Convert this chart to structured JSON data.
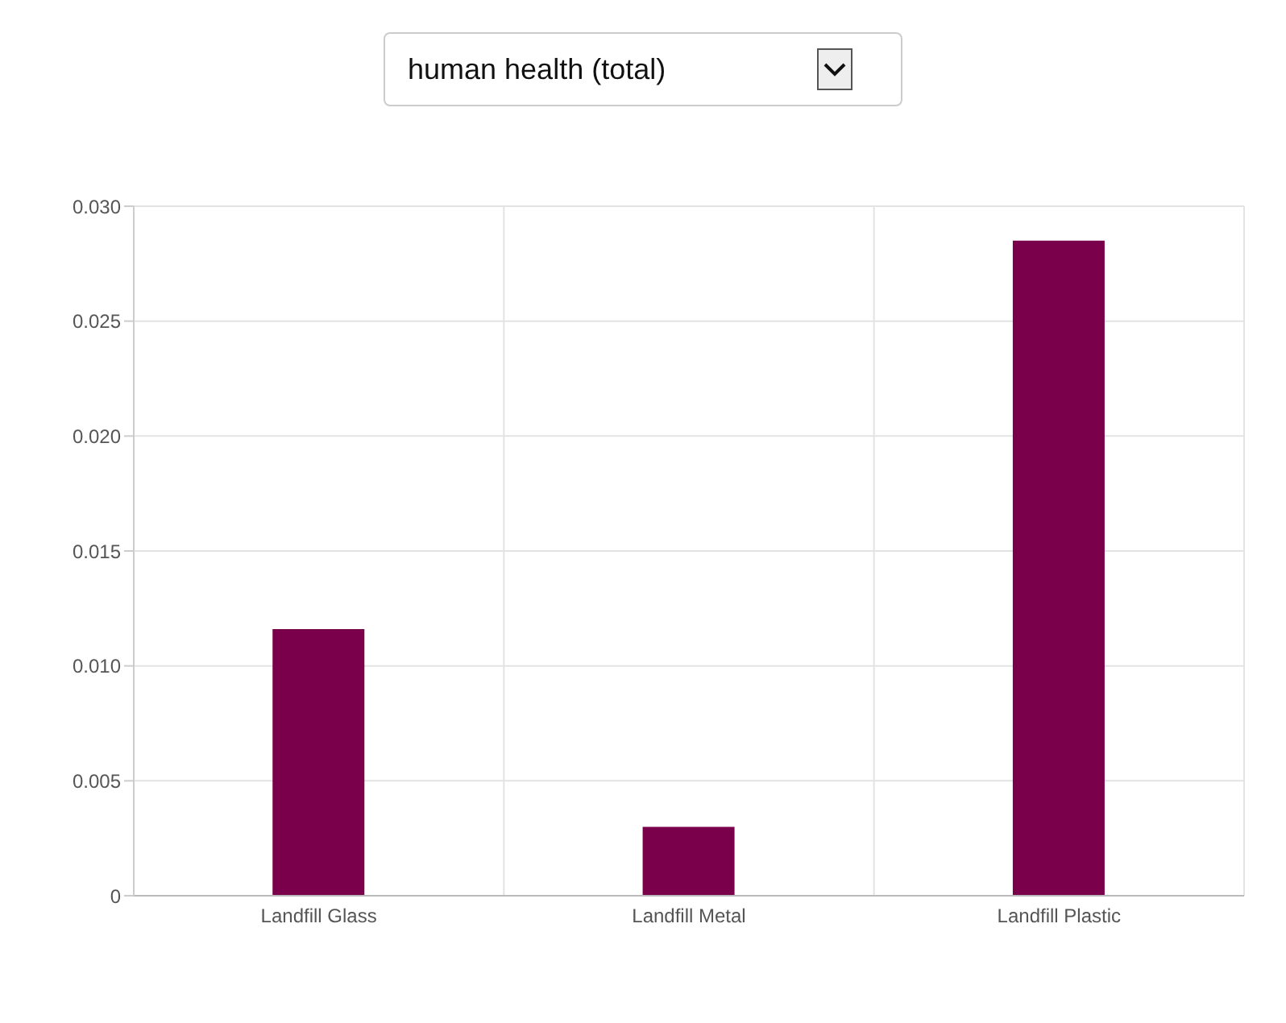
{
  "chart_data": {
    "type": "bar",
    "title": "human health (total)",
    "categories": [
      "Landfill Glass",
      "Landfill Metal",
      "Landfill Plastic"
    ],
    "values": [
      0.0116,
      0.003,
      0.0285
    ],
    "color": "#7a004b",
    "ylim": [
      0,
      0.03
    ],
    "yticks": [
      0,
      0.005,
      {
        "value": 0.01,
        "label": "0.010"
      },
      0.015,
      {
        "value": 0.02,
        "label": "0.020"
      },
      0.025,
      {
        "value": 0.03,
        "label": "0.030"
      }
    ],
    "grid": true
  }
}
